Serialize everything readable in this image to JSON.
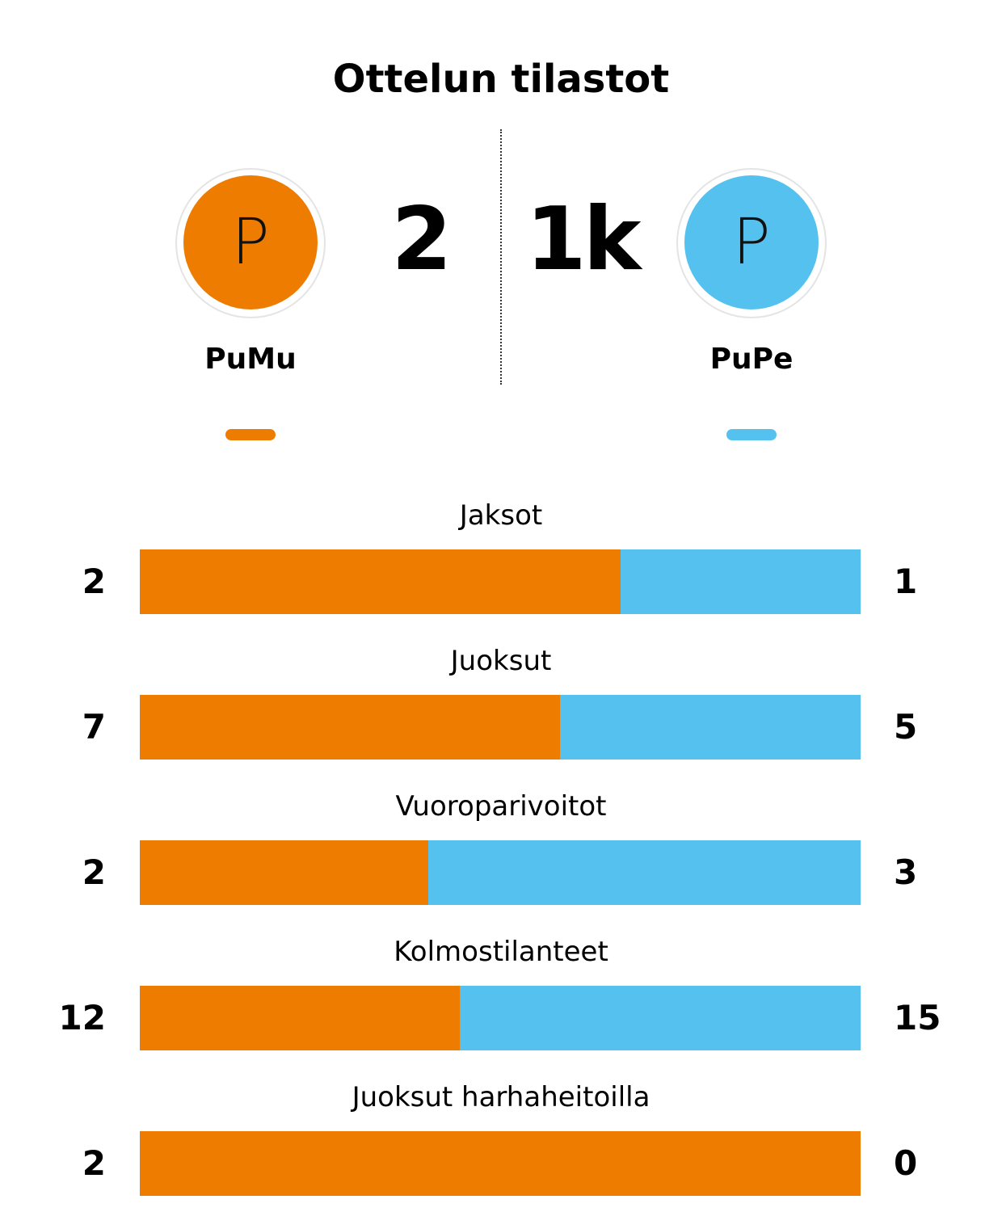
{
  "title": "Ottelun tilastot",
  "teams": [
    {
      "name": "PuMu",
      "logo": "P",
      "score": "2",
      "color": "#ee7c00"
    },
    {
      "name": "PuPe",
      "logo": "P",
      "score": "1k",
      "color": "#55c1ef"
    }
  ],
  "stats": [
    {
      "label": "Jaksot",
      "home": 2,
      "away": 1
    },
    {
      "label": "Juoksut",
      "home": 7,
      "away": 5
    },
    {
      "label": "Vuoroparivoitot",
      "home": 2,
      "away": 3
    },
    {
      "label": "Kolmostilanteet",
      "home": 12,
      "away": 15
    },
    {
      "label": "Juoksut harhaheitoilla",
      "home": 2,
      "away": 0
    }
  ]
}
